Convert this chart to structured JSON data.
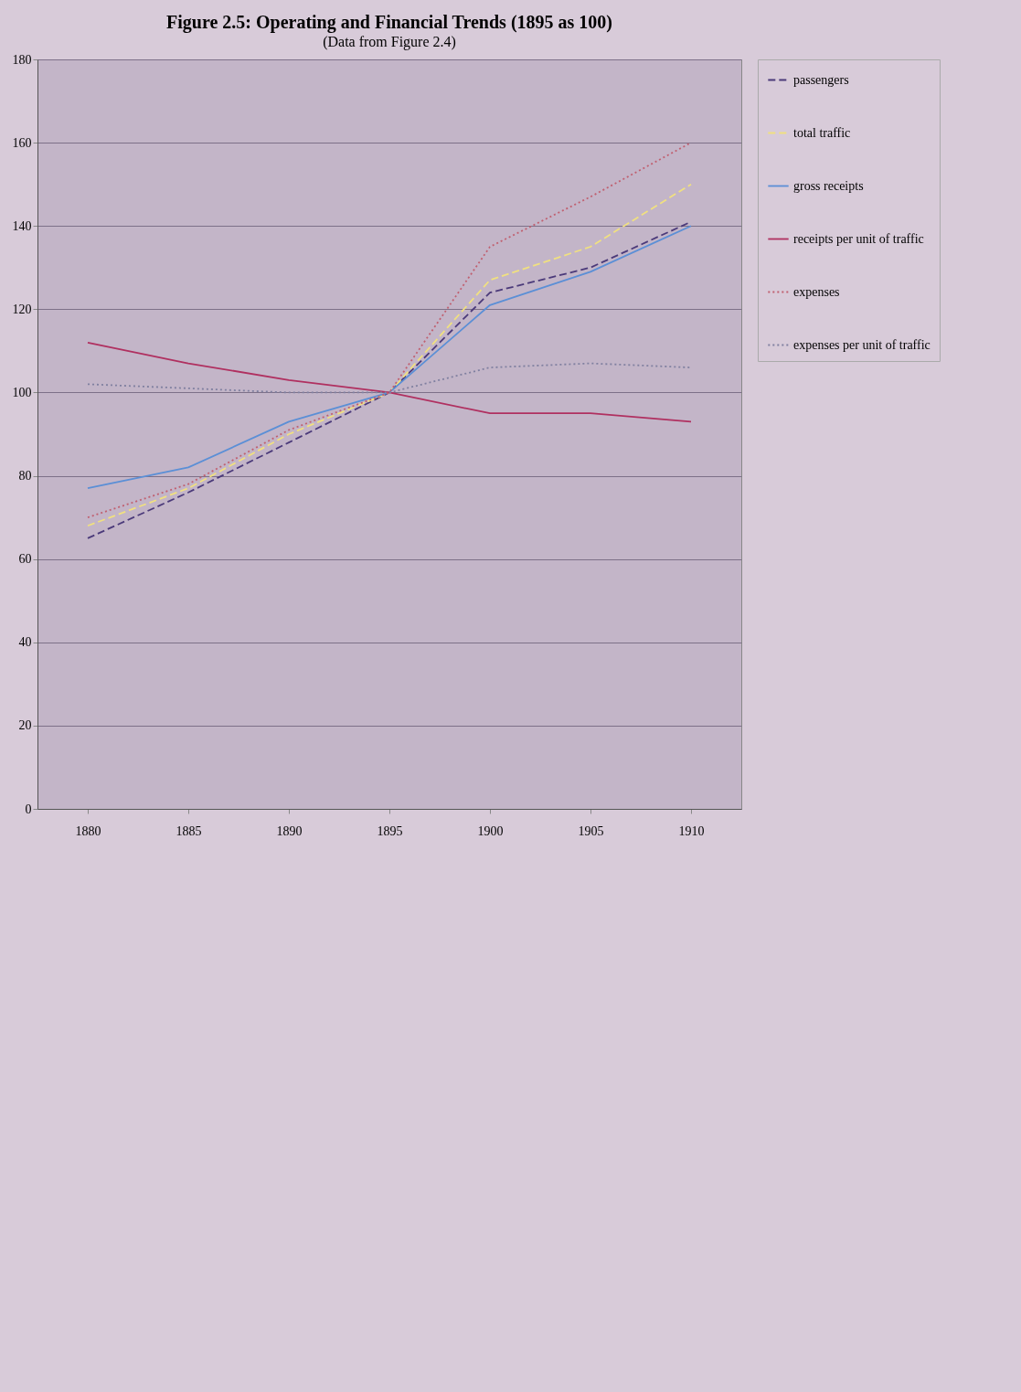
{
  "chart_data": {
    "type": "line",
    "title": "Figure 2.5:  Operating and Financial Trends (1895 as 100)",
    "subtitle": "(Data from Figure 2.4)",
    "categories": [
      "1880",
      "1885",
      "1890",
      "1895",
      "1900",
      "1905",
      "1910"
    ],
    "series": [
      {
        "name": "passengers",
        "color": "#4b3a7a",
        "line_style": "dashed",
        "values": [
          65,
          76,
          88,
          100,
          124,
          130,
          141
        ]
      },
      {
        "name": "total traffic",
        "color": "#f0e080",
        "line_style": "dashed",
        "values": [
          68,
          77,
          90,
          100,
          127,
          135,
          150
        ]
      },
      {
        "name": "gross receipts",
        "color": "#5b8fd6",
        "line_style": "solid",
        "values": [
          77,
          82,
          93,
          100,
          121,
          129,
          140
        ]
      },
      {
        "name": "receipts per unit of traffic",
        "color": "#b03060",
        "line_style": "solid",
        "values": [
          112,
          107,
          103,
          100,
          95,
          95,
          93
        ]
      },
      {
        "name": "expenses",
        "color": "#c06070",
        "line_style": "dotted",
        "values": [
          70,
          78,
          91,
          100,
          135,
          147,
          160
        ]
      },
      {
        "name": "expenses per unit of traffic",
        "color": "#8080a0",
        "line_style": "dotted",
        "values": [
          102,
          101,
          100,
          100,
          106,
          107,
          106
        ]
      }
    ],
    "ylim": [
      0,
      180
    ],
    "yticks": [
      0,
      20,
      40,
      60,
      80,
      100,
      120,
      140,
      160,
      180
    ],
    "grid": "y",
    "legend": "right",
    "marker": "none"
  }
}
